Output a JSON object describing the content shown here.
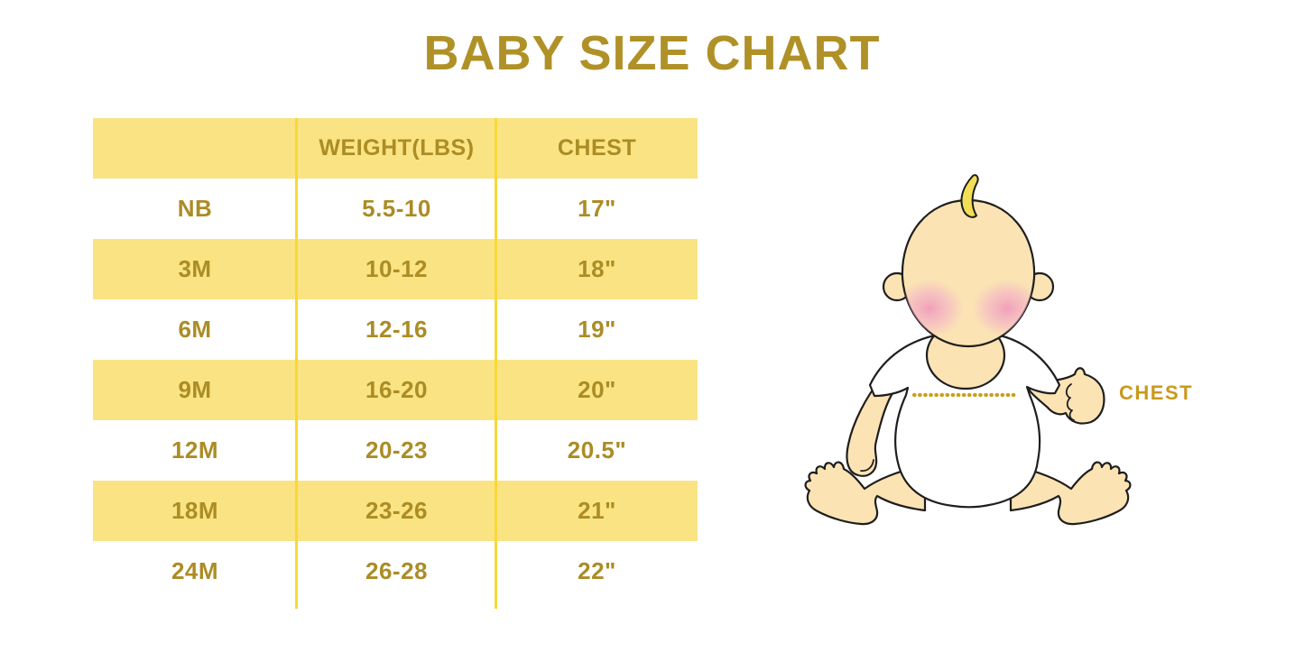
{
  "page": {
    "title": "BABY SIZE CHART"
  },
  "chart_data": {
    "type": "table",
    "title": "BABY SIZE CHART",
    "columns": [
      "",
      "WEIGHT(LBS)",
      "CHEST"
    ],
    "rows": [
      [
        "NB",
        "5.5-10",
        "17\""
      ],
      [
        "3M",
        "10-12",
        "18\""
      ],
      [
        "6M",
        "12-16",
        "19\""
      ],
      [
        "9M",
        "16-20",
        "20\""
      ],
      [
        "12M",
        "20-23",
        "20.5\""
      ],
      [
        "18M",
        "23-26",
        "21\""
      ],
      [
        "24M",
        "26-28",
        "22\""
      ]
    ]
  },
  "annotation": {
    "chest_label": "CHEST"
  },
  "colors": {
    "title_gold": "#B09127",
    "table_text_gold": "#AB8C25",
    "row_yellow": "#FAE382",
    "divider_yellow": "#F9D838",
    "label_gold": "#C9991B",
    "dotted_line_gold": "#C9A01C",
    "baby_skin": "#FBE3B4",
    "baby_hair": "#F2DF55",
    "baby_cheek": "#F09CBB",
    "baby_shirt": "#FFFFFF",
    "outline": "#1E1E1E"
  }
}
